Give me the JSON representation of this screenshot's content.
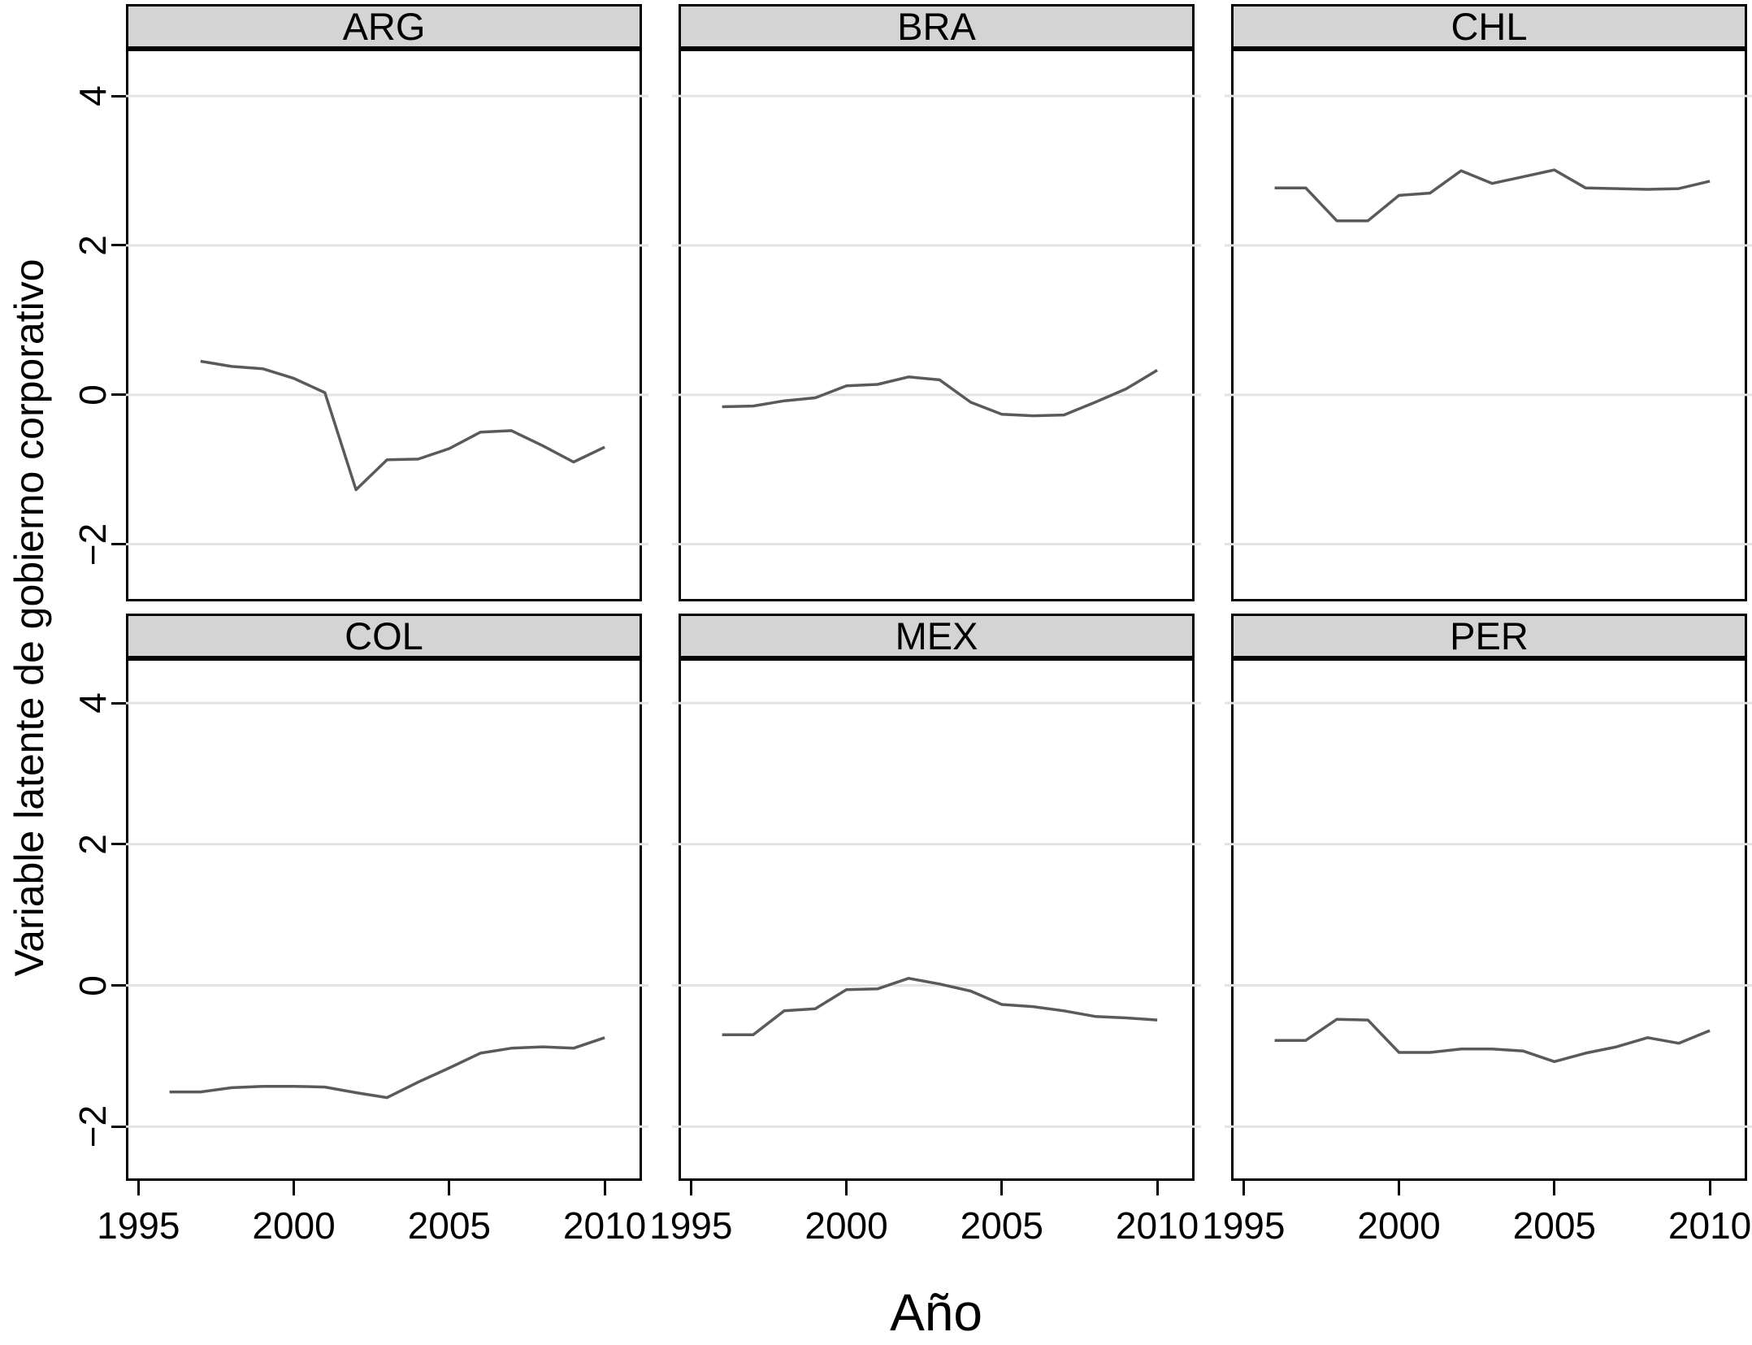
{
  "figure": {
    "ylabel": "Variable latente de gobierno corporativo",
    "xlabel": "Año"
  },
  "colors": {
    "line": "#5a5a5a",
    "gridline": "#e3e3e3",
    "facet_header_bg": "#d4d4d4",
    "border": "#000000",
    "background": "#ffffff",
    "text": "#000000"
  },
  "chart_data": {
    "type": "line",
    "layout": "2x3 facet grid",
    "title": "",
    "xlabel": "Año",
    "ylabel": "Variable latente de gobierno corporativo",
    "legend": "none",
    "grid": "horizontal gridlines only",
    "x_ticks": [
      1995,
      2000,
      2005,
      2010
    ],
    "x_tick_labels": [
      "1995",
      "2000",
      "2005",
      "2010"
    ],
    "y_ticks": [
      4,
      2,
      0,
      -2
    ],
    "y_tick_labels": [
      "4",
      "2",
      "0",
      "−2"
    ],
    "x_range": [
      1994.6,
      2011.2
    ],
    "y_range": [
      -2.7,
      4.6
    ],
    "facets": [
      {
        "title": "ARG",
        "start_year": 1997,
        "years": [
          1997,
          1998,
          1999,
          2000,
          2001,
          2002,
          2003,
          2004,
          2005,
          2006,
          2007,
          2008,
          2009,
          2010
        ],
        "values": [
          0.45,
          0.38,
          0.35,
          0.22,
          0.03,
          -1.27,
          -0.87,
          -0.86,
          -0.72,
          -0.5,
          -0.48,
          -0.68,
          -0.9,
          -0.7
        ]
      },
      {
        "title": "BRA",
        "start_year": 1996,
        "years": [
          1996,
          1997,
          1998,
          1999,
          2000,
          2001,
          2002,
          2003,
          2004,
          2005,
          2006,
          2007,
          2008,
          2009,
          2010
        ],
        "values": [
          -0.16,
          -0.15,
          -0.08,
          -0.04,
          0.12,
          0.14,
          0.24,
          0.2,
          -0.1,
          -0.26,
          -0.28,
          -0.27,
          -0.1,
          0.08,
          0.33
        ]
      },
      {
        "title": "CHL",
        "start_year": 1996,
        "years": [
          1996,
          1997,
          1998,
          1999,
          2000,
          2001,
          2002,
          2003,
          2004,
          2005,
          2006,
          2007,
          2008,
          2009,
          2010
        ],
        "values": [
          2.77,
          2.77,
          2.33,
          2.33,
          2.67,
          2.7,
          3.0,
          2.83,
          2.92,
          3.01,
          2.77,
          2.76,
          2.75,
          2.76,
          2.86
        ]
      },
      {
        "title": "COL",
        "start_year": 1996,
        "years": [
          1996,
          1997,
          1998,
          1999,
          2000,
          2001,
          2002,
          2003,
          2004,
          2005,
          2006,
          2007,
          2008,
          2009,
          2010
        ],
        "values": [
          -1.51,
          -1.51,
          -1.45,
          -1.43,
          -1.43,
          -1.44,
          -1.52,
          -1.59,
          -1.37,
          -1.17,
          -0.96,
          -0.89,
          -0.87,
          -0.89,
          -0.74
        ]
      },
      {
        "title": "MEX",
        "start_year": 1996,
        "years": [
          1996,
          1997,
          1998,
          1999,
          2000,
          2001,
          2002,
          2003,
          2004,
          2005,
          2006,
          2007,
          2008,
          2009,
          2010
        ],
        "values": [
          -0.7,
          -0.7,
          -0.36,
          -0.33,
          -0.06,
          -0.05,
          0.1,
          0.02,
          -0.08,
          -0.27,
          -0.3,
          -0.36,
          -0.44,
          -0.46,
          -0.49
        ]
      },
      {
        "title": "PER",
        "start_year": 1996,
        "years": [
          1996,
          1997,
          1998,
          1999,
          2000,
          2001,
          2002,
          2003,
          2004,
          2005,
          2006,
          2007,
          2008,
          2009,
          2010
        ],
        "values": [
          -0.78,
          -0.78,
          -0.48,
          -0.49,
          -0.95,
          -0.95,
          -0.9,
          -0.9,
          -0.93,
          -1.08,
          -0.96,
          -0.87,
          -0.74,
          -0.82,
          -0.64
        ]
      }
    ]
  }
}
